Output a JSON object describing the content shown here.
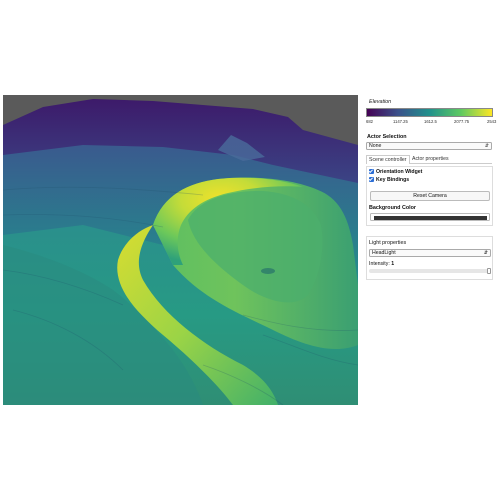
{
  "colorbar": {
    "title": "Elevation",
    "ticks": [
      "682",
      "1147.25",
      "1612.5",
      "2077.75",
      "2543"
    ],
    "gradient": [
      "#440154",
      "#3b528b",
      "#21918c",
      "#5ec962",
      "#fde725"
    ]
  },
  "actor_selection": {
    "label": "Actor Selection",
    "value": "None"
  },
  "tabs": [
    {
      "label": "Scene controller",
      "active": true
    },
    {
      "label": "Actor properties",
      "active": false
    }
  ],
  "scene": {
    "orientation_widget_label": "Orientation Widget",
    "orientation_widget_checked": true,
    "key_bindings_label": "Key Bindings",
    "key_bindings_checked": true,
    "reset_camera_label": "Reset Camera",
    "background_color_label": "Background Color",
    "background_color": "#333333"
  },
  "light": {
    "label": "Light properties",
    "type": "HeadLight",
    "intensity_label": "Intensity:",
    "intensity_value": "1",
    "intensity_fraction": 1.0
  },
  "viewport": {
    "background": "#5a5a5a",
    "orientation_widget_icon": "axes-orientation-icon"
  }
}
